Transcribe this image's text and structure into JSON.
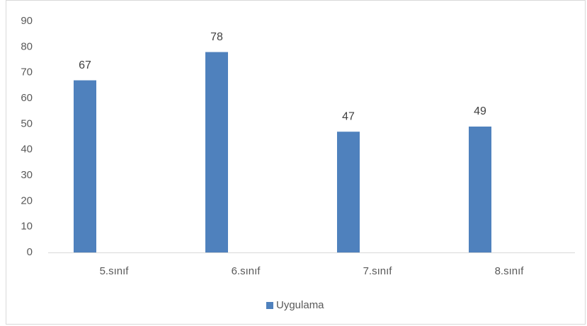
{
  "chart_data": {
    "type": "bar",
    "categories": [
      "5.sınıf",
      "6.sınıf",
      "7.sınıf",
      "8.sınıf"
    ],
    "series": [
      {
        "name": "Uygulama",
        "color": "#4f81bd",
        "values": [
          67,
          78,
          47,
          49
        ]
      }
    ],
    "ylim": [
      0,
      90
    ],
    "yticks": [
      0,
      10,
      20,
      30,
      40,
      50,
      60,
      70,
      80,
      90
    ],
    "grid": false,
    "legend": "bottom",
    "data_labels": true
  }
}
